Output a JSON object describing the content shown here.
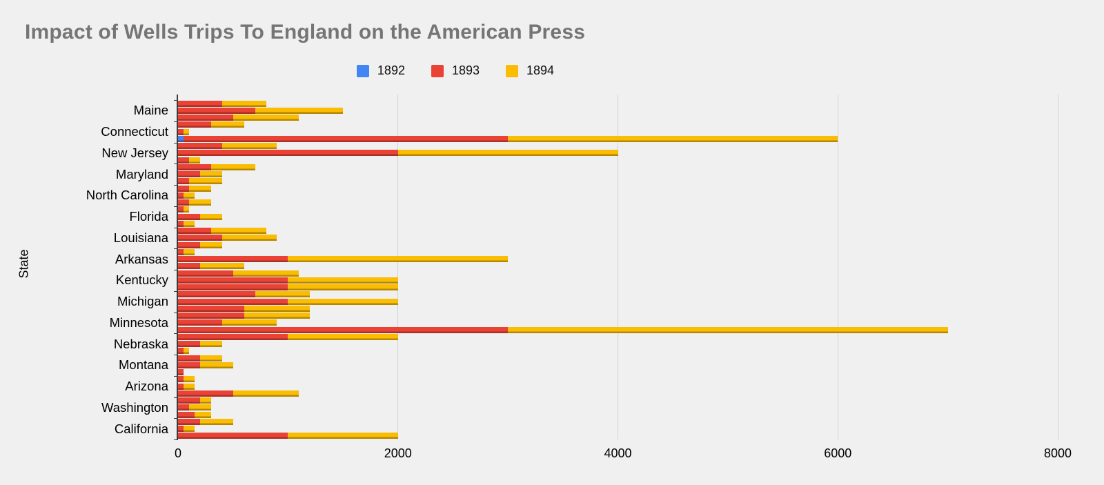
{
  "title": "Impact of Wells Trips To England on the American Press",
  "legend": [
    {
      "label": "1892",
      "color": "#4285f4"
    },
    {
      "label": "1893",
      "color": "#ea4335"
    },
    {
      "label": "1894",
      "color": "#fbbc04"
    }
  ],
  "y_axis_title": "State",
  "chart_data": {
    "type": "bar",
    "orientation": "horizontal",
    "stacked": true,
    "title": "Impact of Wells Trips To England on the American Press",
    "ylabel": "State",
    "xlim": [
      0,
      8000
    ],
    "x_ticks": [
      0,
      2000,
      4000,
      6000,
      8000
    ],
    "grid": true,
    "legend_position": "top-center",
    "series_names": [
      "1892",
      "1893",
      "1894"
    ],
    "series_colors": [
      "#4285f4",
      "#ea4335",
      "#fbbc04"
    ],
    "note": "Each state has three stacked bars; values are segment lengths [1892, 1893, 1894]",
    "groups": [
      {
        "state": "Maine",
        "bars": [
          [
            0,
            400,
            400
          ],
          [
            0,
            700,
            800
          ],
          [
            0,
            500,
            600
          ]
        ]
      },
      {
        "state": "Connecticut",
        "bars": [
          [
            0,
            300,
            300
          ],
          [
            0,
            50,
            50
          ],
          [
            50,
            2950,
            3000
          ]
        ]
      },
      {
        "state": "New Jersey",
        "bars": [
          [
            0,
            400,
            500
          ],
          [
            0,
            2000,
            2000
          ],
          [
            0,
            100,
            100
          ]
        ]
      },
      {
        "state": "Maryland",
        "bars": [
          [
            0,
            300,
            400
          ],
          [
            0,
            200,
            200
          ],
          [
            0,
            100,
            300
          ]
        ]
      },
      {
        "state": "North Carolina",
        "bars": [
          [
            0,
            100,
            200
          ],
          [
            0,
            50,
            100
          ],
          [
            0,
            100,
            200
          ]
        ]
      },
      {
        "state": "Florida",
        "bars": [
          [
            0,
            50,
            50
          ],
          [
            0,
            200,
            200
          ],
          [
            0,
            50,
            100
          ]
        ]
      },
      {
        "state": "Louisiana",
        "bars": [
          [
            0,
            300,
            500
          ],
          [
            0,
            400,
            500
          ],
          [
            0,
            200,
            200
          ]
        ]
      },
      {
        "state": "Arkansas",
        "bars": [
          [
            0,
            50,
            100
          ],
          [
            0,
            1000,
            2000
          ],
          [
            0,
            200,
            400
          ]
        ]
      },
      {
        "state": "Kentucky",
        "bars": [
          [
            0,
            500,
            600
          ],
          [
            0,
            1000,
            1000
          ],
          [
            0,
            1000,
            1000
          ]
        ]
      },
      {
        "state": "Michigan",
        "bars": [
          [
            0,
            700,
            500
          ],
          [
            0,
            1000,
            1000
          ],
          [
            0,
            600,
            600
          ]
        ]
      },
      {
        "state": "Minnesota",
        "bars": [
          [
            0,
            600,
            600
          ],
          [
            0,
            400,
            500
          ],
          [
            0,
            3000,
            4000
          ]
        ]
      },
      {
        "state": "Nebraska",
        "bars": [
          [
            0,
            1000,
            1000
          ],
          [
            0,
            200,
            200
          ],
          [
            0,
            50,
            50
          ]
        ]
      },
      {
        "state": "Montana",
        "bars": [
          [
            0,
            200,
            200
          ],
          [
            0,
            200,
            300
          ],
          [
            0,
            50,
            0
          ]
        ]
      },
      {
        "state": "Arizona",
        "bars": [
          [
            0,
            50,
            100
          ],
          [
            0,
            50,
            100
          ],
          [
            0,
            500,
            600
          ]
        ]
      },
      {
        "state": "Washington",
        "bars": [
          [
            0,
            200,
            100
          ],
          [
            0,
            100,
            200
          ],
          [
            0,
            150,
            150
          ]
        ]
      },
      {
        "state": "California",
        "bars": [
          [
            0,
            200,
            300
          ],
          [
            0,
            50,
            100
          ],
          [
            0,
            1000,
            1000
          ]
        ]
      }
    ]
  }
}
